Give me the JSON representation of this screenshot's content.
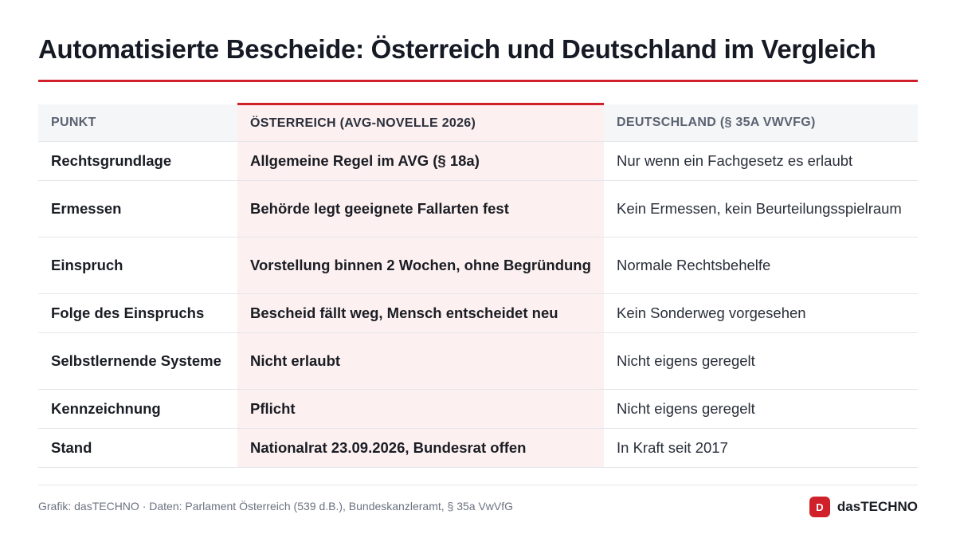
{
  "title": "Automatisierte Bescheide: Österreich und Deutschland im Vergleich",
  "accent_color": "#d0202a",
  "table": {
    "headers": [
      "Punkt",
      "Österreich (AVG-Novelle 2026)",
      "Deutschland (§ 35a VwVfG)"
    ],
    "rows": [
      {
        "punkt": "Rechtsgrundlage",
        "at": "Allgemeine Regel im AVG (§ 18a)",
        "de": "Nur wenn ein Fachgesetz es erlaubt"
      },
      {
        "punkt": "Ermessen",
        "at": "Behörde legt geeignete Fallarten fest",
        "de": "Kein Ermessen, kein Beurteilungsspielraum"
      },
      {
        "punkt": "Einspruch",
        "at": "Vorstellung binnen 2 Wochen, ohne Begründung",
        "de": "Normale Rechtsbehelfe"
      },
      {
        "punkt": "Folge des Einspruchs",
        "at": "Bescheid fällt weg, Mensch entscheidet neu",
        "de": "Kein Sonderweg vorgesehen"
      },
      {
        "punkt": "Selbstlernende Systeme",
        "at": "Nicht erlaubt",
        "de": "Nicht eigens geregelt"
      },
      {
        "punkt": "Kennzeichnung",
        "at": "Pflicht",
        "de": "Nicht eigens geregelt"
      },
      {
        "punkt": "Stand",
        "at": "Nationalrat 23.09.2026, Bundesrat offen",
        "de": "In Kraft seit 2017"
      }
    ]
  },
  "footer": {
    "source": "Grafik: dasTECHNO · Daten: Parlament Österreich (539 d.B.), Bundeskanzleramt, § 35a VwVfG",
    "brand_badge": "D",
    "brand_name": "dasTECHNO"
  }
}
